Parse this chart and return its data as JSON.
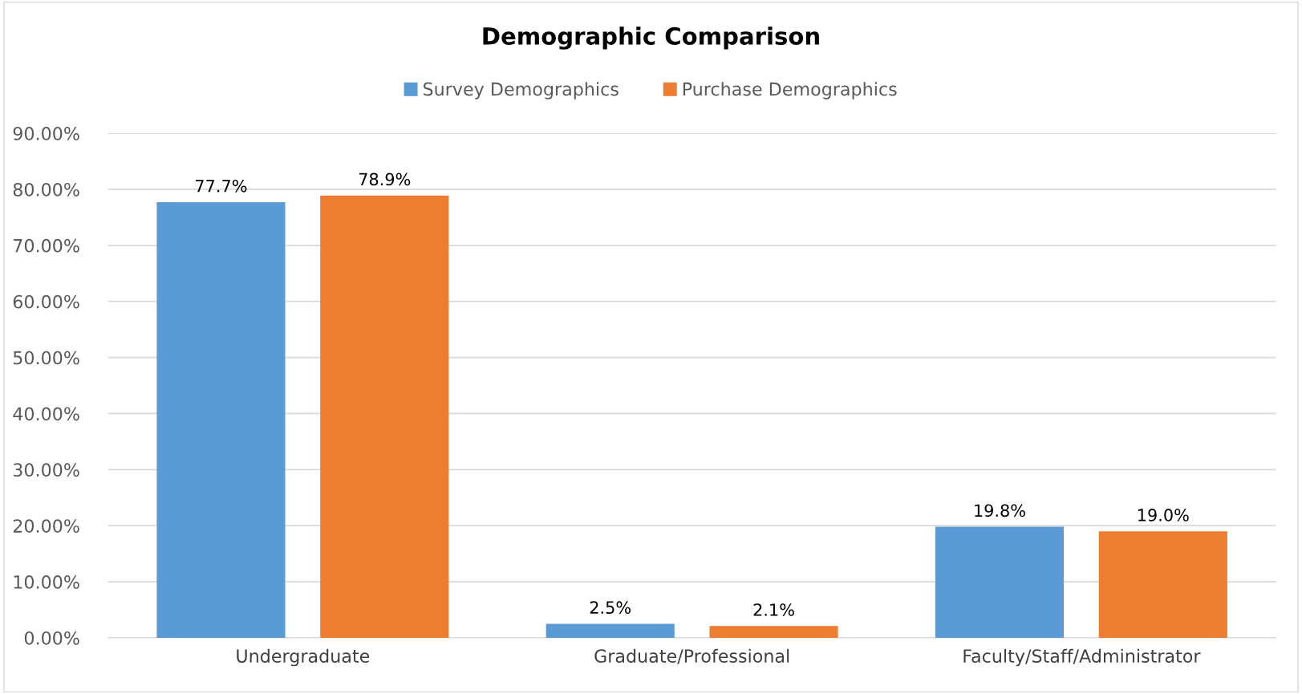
{
  "chart_data": {
    "type": "bar",
    "title": "Demographic Comparison",
    "categories": [
      "Undergraduate",
      "Graduate/Professional",
      "Faculty/Staff/Administrator"
    ],
    "series": [
      {
        "name": "Survey Demographics",
        "color": "#5b9bd5",
        "values": [
          77.7,
          2.5,
          19.8
        ],
        "value_labels": [
          "77.7%",
          "2.5%",
          "19.8%"
        ]
      },
      {
        "name": "Purchase Demographics",
        "color": "#ed7d31",
        "values": [
          78.9,
          2.1,
          19.0
        ],
        "value_labels": [
          "78.9%",
          "2.1%",
          "19.0%"
        ]
      }
    ],
    "ylim": [
      0,
      90
    ],
    "yticks": [
      {
        "value": 0,
        "label": "0.00%"
      },
      {
        "value": 10,
        "label": "10.00%"
      },
      {
        "value": 20,
        "label": "20.00%"
      },
      {
        "value": 30,
        "label": "30.00%"
      },
      {
        "value": 40,
        "label": "40.00%"
      },
      {
        "value": 50,
        "label": "50.00%"
      },
      {
        "value": 60,
        "label": "60.00%"
      },
      {
        "value": 70,
        "label": "70.00%"
      },
      {
        "value": 80,
        "label": "80.00%"
      },
      {
        "value": 90,
        "label": "90.00%"
      }
    ],
    "grid": "y",
    "legend": "top"
  }
}
